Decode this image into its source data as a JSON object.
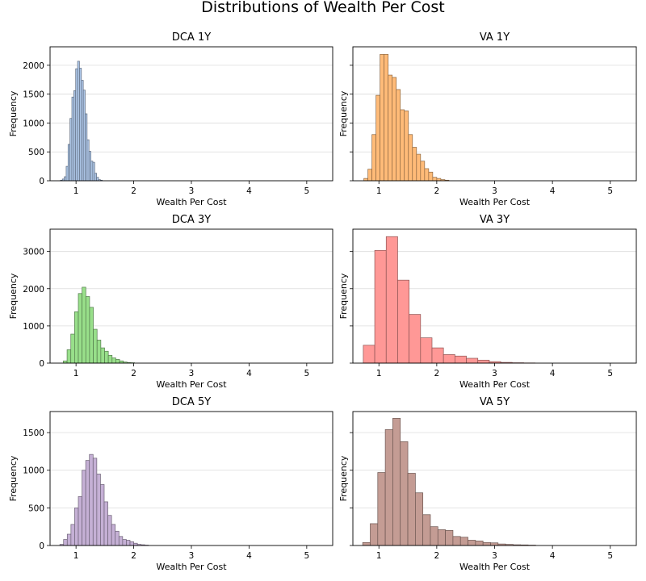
{
  "figure": {
    "title": "Distributions of Wealth Per Cost"
  },
  "chart_data": [
    {
      "type": "bar",
      "title": "DCA 1Y",
      "xlabel": "Wealth Per Cost",
      "ylabel": "Frequency",
      "color": "#aec7e8",
      "bin_start": 0.73,
      "bin_width": 0.033,
      "values": [
        10,
        30,
        70,
        250,
        630,
        1080,
        1450,
        1560,
        1940,
        2070,
        1950,
        1740,
        1570,
        1160,
        710,
        510,
        340,
        320,
        130,
        60,
        20,
        10
      ],
      "xlim": [
        0.55,
        5.45
      ],
      "ylim": [
        0,
        2320
      ],
      "xticks": [
        1,
        2,
        3,
        4,
        5
      ],
      "yticks": [
        0,
        500,
        1000,
        1500,
        2000
      ],
      "grid": "y",
      "show_yticklabels": true
    },
    {
      "type": "bar",
      "title": "VA 1Y",
      "xlabel": "Wealth Per Cost",
      "ylabel": "Frequency",
      "color": "#ffbb78",
      "bin_start": 0.74,
      "bin_width": 0.07,
      "values": [
        40,
        200,
        800,
        1480,
        2190,
        2190,
        1830,
        1790,
        1580,
        1230,
        1210,
        800,
        580,
        460,
        340,
        210,
        150,
        60,
        40,
        20,
        10
      ],
      "xlim": [
        0.55,
        5.45
      ],
      "ylim": [
        0,
        2320
      ],
      "xticks": [
        1,
        2,
        3,
        4,
        5
      ],
      "yticks": [
        0,
        500,
        1000,
        1500,
        2000
      ],
      "grid": "y",
      "show_yticklabels": false
    },
    {
      "type": "bar",
      "title": "DCA 3Y",
      "xlabel": "Wealth Per Cost",
      "ylabel": "Frequency",
      "color": "#98df8a",
      "bin_start": 0.78,
      "bin_width": 0.065,
      "values": [
        60,
        360,
        780,
        1380,
        1870,
        2040,
        1790,
        1500,
        910,
        620,
        410,
        320,
        210,
        140,
        100,
        60,
        30,
        15,
        10
      ],
      "xlim": [
        0.55,
        5.45
      ],
      "ylim": [
        0,
        3600
      ],
      "xticks": [
        1,
        2,
        3,
        4,
        5
      ],
      "yticks": [
        0,
        1000,
        2000,
        3000
      ],
      "grid": "y",
      "show_yticklabels": true
    },
    {
      "type": "bar",
      "title": "VA 3Y",
      "xlabel": "Wealth Per Cost",
      "ylabel": "Frequency",
      "color": "#ff9896",
      "bin_start": 0.73,
      "bin_width": 0.198,
      "values": [
        480,
        3030,
        3400,
        2230,
        1310,
        680,
        410,
        230,
        190,
        130,
        80,
        40,
        20,
        10,
        5
      ],
      "xlim": [
        0.55,
        5.45
      ],
      "ylim": [
        0,
        3600
      ],
      "xticks": [
        1,
        2,
        3,
        4,
        5
      ],
      "yticks": [
        0,
        1000,
        2000,
        3000
      ],
      "grid": "y",
      "show_yticklabels": false
    },
    {
      "type": "bar",
      "title": "DCA 5Y",
      "xlabel": "Wealth Per Cost",
      "ylabel": "Frequency",
      "color": "#c5b0d5",
      "bin_start": 0.72,
      "bin_width": 0.064,
      "values": [
        15,
        80,
        150,
        280,
        500,
        650,
        1000,
        1130,
        1210,
        1160,
        950,
        810,
        580,
        400,
        280,
        190,
        120,
        80,
        70,
        50,
        30,
        15,
        10,
        5
      ],
      "xlim": [
        0.55,
        5.45
      ],
      "ylim": [
        0,
        1780
      ],
      "xticks": [
        1,
        2,
        3,
        4,
        5
      ],
      "yticks": [
        0,
        500,
        1000,
        1500
      ],
      "grid": "y",
      "show_yticklabels": true
    },
    {
      "type": "bar",
      "title": "VA 5Y",
      "xlabel": "Wealth Per Cost",
      "ylabel": "Frequency",
      "color": "#c49c94",
      "bin_start": 0.72,
      "bin_width": 0.13,
      "values": [
        40,
        290,
        970,
        1540,
        1690,
        1380,
        960,
        700,
        410,
        250,
        210,
        200,
        120,
        110,
        70,
        60,
        40,
        35,
        20,
        15,
        10,
        8,
        5
      ],
      "xlim": [
        0.55,
        5.45
      ],
      "ylim": [
        0,
        1780
      ],
      "xticks": [
        1,
        2,
        3,
        4,
        5
      ],
      "yticks": [
        0,
        500,
        1000,
        1500
      ],
      "grid": "y",
      "show_yticklabels": false
    }
  ]
}
